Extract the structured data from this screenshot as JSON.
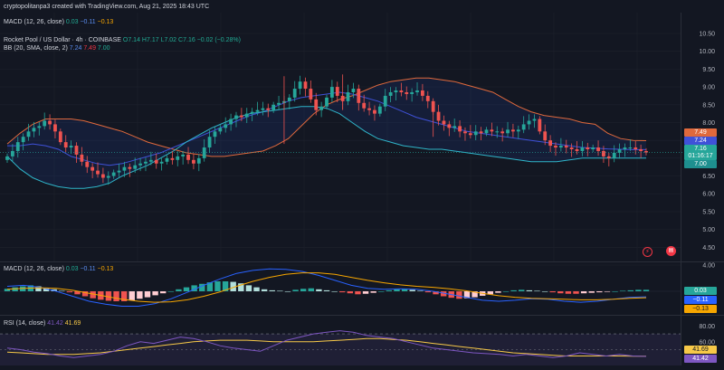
{
  "header": {
    "top_caption": "cryptopolitanpa3 created with TradingView.com, Aug 21, 2025 18:43 UTC",
    "top_macd_label": "MACD (12, 26, close)",
    "top_macd_v1": "0.03",
    "top_macd_v2": "−0.11",
    "top_macd_v3": "−0.13",
    "symbol": "Rocket Pool / US Dollar · 4h · COINBASE",
    "ohlc_o": "O7.14",
    "ohlc_h": "H7.17",
    "ohlc_l": "L7.02",
    "ohlc_c": "C7.16",
    "ohlc_change": "−0.02 (−0.28%)",
    "bb_label": "BB (20, SMA, close, 2)",
    "bb_basis": "7.24",
    "bb_upper": "7.49",
    "bb_lower": "7.00"
  },
  "price_tags": {
    "upper": "7.49",
    "basis": "7.24",
    "last": "7.16",
    "countdown": "01:16:17",
    "lower": "7.00"
  },
  "macd_panel": {
    "label": "MACD (12, 26, close)",
    "v1": "0.03",
    "v2": "−0.11",
    "v3": "−0.13",
    "tag_hist": "0.03",
    "tag_macd": "−0.11",
    "tag_signal": "−0.13"
  },
  "rsi_panel": {
    "label": "RSI (14, close)",
    "v1": "41.42",
    "v2": "41.69",
    "tag_ma": "41.69",
    "tag_rsi": "41.42"
  },
  "icons": {
    "alert": "lightning-icon",
    "news": "calendar-icon"
  },
  "colors": {
    "background": "#131722",
    "up": "#26a69a",
    "down": "#ef5350",
    "bb_upper": "#e0693c",
    "bb_basis": "#3f51d8",
    "bb_lower": "#2fb5c9",
    "macd_line": "#2962ff",
    "signal_line": "#f7a600",
    "rsi_line": "#7e57c2"
  },
  "chart_data": [
    {
      "type": "candlestick",
      "title": "Rocket Pool / US Dollar · 4h · COINBASE",
      "ylim": [
        4.0,
        10.5
      ],
      "y_ticks": [
        "10.50",
        "10.00",
        "9.50",
        "9.00",
        "8.50",
        "8.00",
        "7.50",
        "7.00",
        "6.50",
        "6.00",
        "5.50",
        "5.00",
        "4.50",
        "4.00"
      ],
      "close": [
        7.05,
        7.2,
        7.45,
        7.6,
        7.75,
        7.85,
        7.9,
        8.05,
        7.95,
        7.75,
        7.45,
        7.3,
        7.35,
        7.1,
        6.9,
        6.75,
        6.65,
        6.55,
        6.45,
        6.5,
        6.6,
        6.65,
        6.75,
        6.7,
        6.8,
        6.85,
        6.9,
        6.95,
        6.85,
        6.9,
        7.0,
        6.95,
        7.05,
        7.1,
        6.95,
        6.85,
        7.0,
        7.3,
        7.6,
        7.75,
        7.85,
        7.95,
        8.1,
        8.2,
        8.15,
        8.25,
        8.3,
        8.35,
        8.4,
        8.35,
        8.5,
        8.55,
        8.6,
        8.7,
        8.95,
        9.15,
        8.95,
        8.65,
        8.35,
        8.45,
        8.7,
        9.0,
        8.75,
        8.6,
        8.85,
        8.95,
        8.55,
        8.4,
        8.35,
        8.25,
        8.45,
        8.75,
        8.85,
        8.9,
        8.85,
        8.8,
        8.85,
        8.9,
        8.75,
        8.6,
        8.3,
        8.05,
        7.95,
        7.85,
        7.9,
        7.75,
        7.7,
        7.65,
        7.75,
        7.7,
        7.8,
        7.75,
        7.75,
        7.7,
        7.8,
        7.75,
        7.8,
        7.95,
        8.05,
        8.1,
        7.75,
        7.5,
        7.35,
        7.3,
        7.35,
        7.3,
        7.25,
        7.2,
        7.3,
        7.25,
        7.3,
        7.2,
        7.05,
        7.0,
        7.15,
        7.25,
        7.3,
        7.3,
        7.25,
        7.2,
        7.16
      ],
      "bb_upper": [
        7.4,
        7.7,
        7.95,
        8.1,
        8.1,
        8.1,
        8.05,
        7.95,
        7.85,
        7.75,
        7.6,
        7.45,
        7.35,
        7.25,
        7.15,
        7.1,
        7.05,
        7.05,
        7.1,
        7.15,
        7.2,
        7.35,
        7.55,
        7.9,
        8.25,
        8.5,
        8.65,
        8.75,
        8.9,
        9.05,
        9.15,
        9.2,
        9.25,
        9.25,
        9.2,
        9.15,
        9.05,
        8.95,
        8.85,
        8.65,
        8.45,
        8.3,
        8.2,
        8.15,
        8.1,
        8.0,
        7.95,
        7.7,
        7.55,
        7.5,
        7.49
      ],
      "bb_basis": [
        7.35,
        7.35,
        7.4,
        7.35,
        7.25,
        7.05,
        6.95,
        6.85,
        6.8,
        6.85,
        6.95,
        7.05,
        7.15,
        7.3,
        7.45,
        7.6,
        7.75,
        7.9,
        8.05,
        8.2,
        8.3,
        8.45,
        8.6,
        8.7,
        8.75,
        8.8,
        8.85,
        8.8,
        8.7,
        8.6,
        8.45,
        8.3,
        8.15,
        8.05,
        7.95,
        7.85,
        7.75,
        7.7,
        7.65,
        7.6,
        7.55,
        7.5,
        7.45,
        7.4,
        7.35,
        7.3,
        7.28,
        7.26,
        7.25,
        7.24,
        7.24
      ],
      "bb_lower": [
        7.05,
        6.7,
        6.45,
        6.3,
        6.2,
        6.15,
        6.15,
        6.2,
        6.3,
        6.5,
        6.65,
        6.8,
        7.0,
        7.2,
        7.45,
        7.65,
        7.85,
        8.0,
        8.15,
        8.25,
        8.3,
        8.35,
        8.4,
        8.45,
        8.45,
        8.4,
        8.25,
        8.0,
        7.75,
        7.55,
        7.45,
        7.35,
        7.3,
        7.25,
        7.25,
        7.2,
        7.15,
        7.1,
        7.05,
        7.0,
        6.95,
        6.9,
        6.9,
        6.9,
        6.95,
        7.0,
        7.0,
        7.0,
        7.0,
        7.0,
        7.0
      ]
    },
    {
      "type": "bar",
      "title": "MACD (12, 26, close)",
      "histogram": [
        0.05,
        0.08,
        0.1,
        0.12,
        0.1,
        0.07,
        0.04,
        0.01,
        -0.02,
        -0.06,
        -0.1,
        -0.14,
        -0.17,
        -0.19,
        -0.2,
        -0.2,
        -0.18,
        -0.15,
        -0.12,
        -0.08,
        -0.04,
        0.0,
        0.04,
        0.08,
        0.12,
        0.15,
        0.18,
        0.2,
        0.2,
        0.19,
        0.16,
        0.12,
        0.08,
        0.04,
        0.02,
        0.01,
        0.0,
        0.03,
        0.05,
        0.06,
        0.04,
        0.02,
        0.0,
        -0.02,
        -0.04,
        -0.06,
        -0.05,
        -0.03,
        0.0,
        0.02,
        0.04,
        0.05,
        0.03,
        0.01,
        -0.02,
        -0.06,
        -0.1,
        -0.13,
        -0.15,
        -0.14,
        -0.12,
        -0.09,
        -0.06,
        -0.03,
        0.0,
        0.02,
        0.03,
        0.02,
        0.01,
        0.0,
        -0.02,
        -0.04,
        -0.05,
        -0.05,
        -0.04,
        -0.03,
        -0.02,
        -0.01,
        0.0,
        0.01,
        0.02,
        0.03,
        0.03
      ],
      "macd": [
        0.1,
        0.12,
        0.08,
        0.0,
        -0.1,
        -0.2,
        -0.26,
        -0.3,
        -0.3,
        -0.25,
        -0.15,
        -0.02,
        0.12,
        0.25,
        0.36,
        0.42,
        0.45,
        0.44,
        0.4,
        0.32,
        0.22,
        0.12,
        0.06,
        0.04,
        0.05,
        0.04,
        0.0,
        -0.06,
        -0.12,
        -0.18,
        -0.2,
        -0.18,
        -0.15,
        -0.16,
        -0.2,
        -0.22,
        -0.2,
        -0.16,
        -0.12,
        -0.11
      ],
      "signal": [
        0.04,
        0.06,
        0.07,
        0.06,
        0.02,
        -0.04,
        -0.1,
        -0.16,
        -0.2,
        -0.22,
        -0.21,
        -0.17,
        -0.1,
        -0.01,
        0.1,
        0.2,
        0.28,
        0.34,
        0.37,
        0.37,
        0.34,
        0.28,
        0.22,
        0.17,
        0.13,
        0.1,
        0.08,
        0.05,
        0.01,
        -0.04,
        -0.09,
        -0.12,
        -0.14,
        -0.15,
        -0.16,
        -0.17,
        -0.17,
        -0.16,
        -0.14,
        -0.13
      ]
    },
    {
      "type": "line",
      "title": "RSI (14, close)",
      "ylim": [
        0,
        100
      ],
      "y_ticks": [
        "80.00",
        "60.00",
        "40.00"
      ],
      "rsi": [
        52,
        50,
        47,
        45,
        42,
        40,
        42,
        44,
        48,
        55,
        60,
        58,
        62,
        66,
        64,
        60,
        55,
        52,
        50,
        48,
        55,
        62,
        66,
        70,
        72,
        74,
        72,
        68,
        66,
        64,
        60,
        56,
        52,
        50,
        48,
        46,
        45,
        44,
        42,
        44,
        42,
        40,
        42,
        46,
        44,
        42,
        44,
        42,
        41.42
      ],
      "rsi_ma": [
        47,
        46,
        45,
        44,
        44,
        44,
        45,
        46,
        48,
        50,
        52,
        54,
        56,
        58,
        60,
        61,
        62,
        62,
        62,
        61,
        60,
        60,
        60,
        60,
        61,
        62,
        63,
        64,
        64,
        63,
        62,
        60,
        58,
        56,
        54,
        52,
        50,
        48,
        46,
        45,
        44,
        43,
        42,
        42,
        42,
        42,
        42,
        41.8,
        41.69
      ]
    }
  ]
}
